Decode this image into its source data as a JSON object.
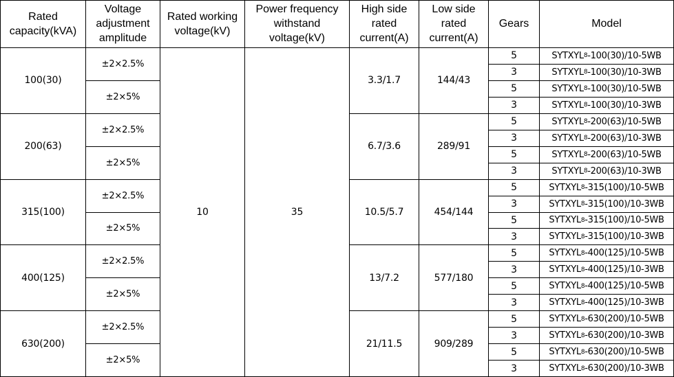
{
  "headers": [
    "Rated capacity(kVA)",
    "Voltage adjustment amplitude",
    "Rated working voltage(kV)",
    "Power frequency withstand voltage(kV)",
    "High side rated current(A)",
    "Low side rated current(A)",
    "Gears",
    "Model"
  ],
  "rated_working_voltage": "10",
  "power_frequency_withstand_voltage": "35",
  "groups": [
    {
      "capacity": "100(30)",
      "amplitudes": [
        "±2×2.5%",
        "±2×5%"
      ],
      "high_current": "3.3/1.7",
      "low_current": "144/43",
      "rows": [
        {
          "gears": "5",
          "model_prefix": "SYTXYL",
          "model_sub": "8",
          "model_suffix": "-100(30)/10-5WB"
        },
        {
          "gears": "3",
          "model_prefix": "SYTXYL",
          "model_sub": "8",
          "model_suffix": "-100(30)/10-3WB"
        },
        {
          "gears": "5",
          "model_prefix": "SYTXYL",
          "model_sub": "8",
          "model_suffix": "-100(30)/10-5WB"
        },
        {
          "gears": "3",
          "model_prefix": "SYTXYL",
          "model_sub": "8",
          "model_suffix": "-100(30)/10-3WB"
        }
      ]
    },
    {
      "capacity": "200(63)",
      "amplitudes": [
        "±2×2.5%",
        "±2×5%"
      ],
      "high_current": "6.7/3.6",
      "low_current": "289/91",
      "rows": [
        {
          "gears": "5",
          "model_prefix": "SYTXYL",
          "model_sub": "8",
          "model_suffix": "-200(63)/10-5WB"
        },
        {
          "gears": "3",
          "model_prefix": "SYTXYL",
          "model_sub": "8",
          "model_suffix": "-200(63)/10-3WB"
        },
        {
          "gears": "5",
          "model_prefix": "SYTXYL",
          "model_sub": "8",
          "model_suffix": "-200(63)/10-5WB"
        },
        {
          "gears": "3",
          "model_prefix": "SYTXYL",
          "model_sub": "8",
          "model_suffix": "-200(63)/10-3WB"
        }
      ]
    },
    {
      "capacity": "315(100)",
      "amplitudes": [
        "±2×2.5%",
        "±2×5%"
      ],
      "high_current": "10.5/5.7",
      "low_current": "454/144",
      "rows": [
        {
          "gears": "5",
          "model_prefix": "SYTXYL",
          "model_sub": "8",
          "model_suffix": "-315(100)/10-5WB"
        },
        {
          "gears": "3",
          "model_prefix": "SYTXYL",
          "model_sub": "8",
          "model_suffix": "-315(100)/10-3WB"
        },
        {
          "gears": "5",
          "model_prefix": "SYTXYL",
          "model_sub": "8",
          "model_suffix": "-315(100)/10-5WB"
        },
        {
          "gears": "3",
          "model_prefix": "SYTXYL",
          "model_sub": "8",
          "model_suffix": "-315(100)/10-3WB"
        }
      ]
    },
    {
      "capacity": "400(125)",
      "amplitudes": [
        "±2×2.5%",
        "±2×5%"
      ],
      "high_current": "13/7.2",
      "low_current": "577/180",
      "rows": [
        {
          "gears": "5",
          "model_prefix": "SYTXYL",
          "model_sub": "8",
          "model_suffix": "-400(125)/10-5WB"
        },
        {
          "gears": "3",
          "model_prefix": "SYTXYL",
          "model_sub": "8",
          "model_suffix": "-400(125)/10-3WB"
        },
        {
          "gears": "5",
          "model_prefix": "SYTXYL",
          "model_sub": "8",
          "model_suffix": "-400(125)/10-5WB"
        },
        {
          "gears": "3",
          "model_prefix": "SYTXYL",
          "model_sub": "8",
          "model_suffix": "-400(125)/10-3WB"
        }
      ]
    },
    {
      "capacity": "630(200)",
      "amplitudes": [
        "±2×2.5%",
        "±2×5%"
      ],
      "high_current": "21/11.5",
      "low_current": "909/289",
      "rows": [
        {
          "gears": "5",
          "model_prefix": "SYTXYL",
          "model_sub": "8",
          "model_suffix": "-630(200)/10-5WB"
        },
        {
          "gears": "3",
          "model_prefix": "SYTXYL",
          "model_sub": "8",
          "model_suffix": "-630(200)/10-3WB"
        },
        {
          "gears": "5",
          "model_prefix": "SYTXYL",
          "model_sub": "8",
          "model_suffix": "-630(200)/10-5WB"
        },
        {
          "gears": "3",
          "model_prefix": "SYTXYL",
          "model_sub": "8",
          "model_suffix": "-630(200)/10-3WB"
        }
      ]
    }
  ]
}
